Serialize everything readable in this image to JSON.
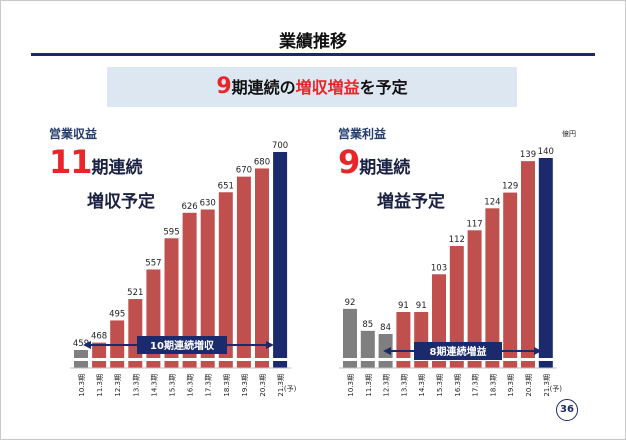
{
  "page": {
    "title": "業績推移",
    "banner": {
      "number": "9",
      "text_a": "期連続の",
      "highlight": "増収増益",
      "text_b": "を予定"
    },
    "page_number": "36",
    "unit": "億円"
  },
  "left_panel": {
    "section_label": "営業収益",
    "headline_number": "11",
    "headline_text": "期連続",
    "subheadline": "増収予定",
    "arrow_label": "10期連続増収"
  },
  "right_panel": {
    "section_label": "営業利益",
    "headline_number": "9",
    "headline_text": "期連続",
    "subheadline": "増益予定",
    "arrow_label": "8期連続増益"
  },
  "colors": {
    "gray": "#7f7f7f",
    "red": "#c0504d",
    "navy": "#1a2a6c",
    "accent": "#e8262a"
  },
  "chart_data": [
    {
      "type": "bar",
      "title": "営業収益",
      "categories": [
        "10.3期",
        "11.3期",
        "12.3期",
        "13.3期",
        "14.3期",
        "15.3期",
        "16.3期",
        "17.3期",
        "18.3期",
        "19.3期",
        "20.3期",
        "21.3期"
      ],
      "last_category_suffix": "(予)",
      "values": [
        459,
        468,
        495,
        521,
        557,
        595,
        626,
        630,
        651,
        670,
        680,
        700
      ],
      "bar_colors": [
        "gray",
        "red",
        "red",
        "red",
        "red",
        "red",
        "red",
        "red",
        "red",
        "red",
        "red",
        "navy"
      ]
    },
    {
      "type": "bar",
      "title": "営業利益",
      "categories": [
        "10.3期",
        "11.3期",
        "12.3期",
        "13.3期",
        "14.3期",
        "15.3期",
        "16.3期",
        "17.3期",
        "18.3期",
        "19.3期",
        "20.3期",
        "21.3期"
      ],
      "last_category_suffix": "(予)",
      "values": [
        92,
        85,
        84,
        91,
        91,
        103,
        112,
        117,
        124,
        129,
        139,
        140
      ],
      "bar_colors": [
        "gray",
        "gray",
        "gray",
        "red",
        "red",
        "red",
        "red",
        "red",
        "red",
        "red",
        "red",
        "navy"
      ]
    }
  ]
}
